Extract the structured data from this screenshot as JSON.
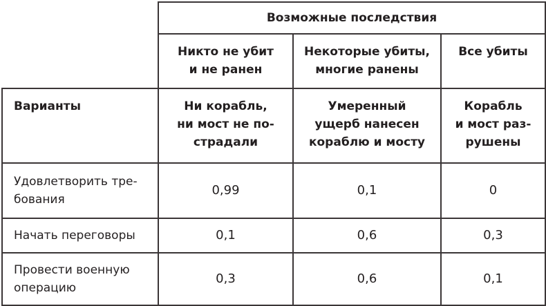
{
  "header": {
    "title": "Возможные последствия"
  },
  "outcomes": [
    {
      "casualties": [
        "Никто не убит",
        "и не ранен"
      ],
      "damage": [
        "Ни корабль,",
        "ни мост не по-",
        "страдали"
      ]
    },
    {
      "casualties": [
        "Некоторые убиты,",
        "многие ранены"
      ],
      "damage": [
        "Умеренный",
        "ущерб нанесен",
        "кораблю и мосту"
      ]
    },
    {
      "casualties": [
        "Все убиты"
      ],
      "damage": [
        "Корабль",
        "и мост раз-",
        "рушены"
      ]
    }
  ],
  "options_header": "Варианты",
  "rows": [
    {
      "label": [
        "Удовлетворить тре-",
        "бования"
      ],
      "values": [
        "0,99",
        "0,1",
        "0"
      ]
    },
    {
      "label": [
        "Начать переговоры"
      ],
      "values": [
        "0,1",
        "0,6",
        "0,3"
      ]
    },
    {
      "label": [
        "Провести военную",
        "операцию"
      ],
      "values": [
        "0,3",
        "0,6",
        "0,1"
      ]
    }
  ]
}
